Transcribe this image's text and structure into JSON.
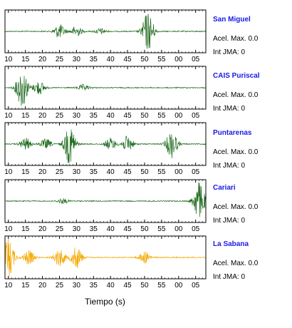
{
  "chart_data": {
    "type": "line",
    "title": "",
    "xlabel": "Tiempo (s)",
    "ylabel": "",
    "grid": false,
    "tick_labels": [
      "10",
      "15",
      "20",
      "25",
      "30",
      "35",
      "40",
      "45",
      "50",
      "55",
      "00",
      "05"
    ],
    "xlim": [
      9,
      68
    ],
    "panels": [
      {
        "station": "San Miguel",
        "pga_label": "Acel. Max. 0.0",
        "jma_label": "Int JMA: 0",
        "color": "#1f6b1f",
        "bursts": [
          {
            "t": 25,
            "amp": 0.35
          },
          {
            "t": 30,
            "amp": 0.25
          },
          {
            "t": 37,
            "amp": 0.15
          },
          {
            "t": 51,
            "amp": 1.0
          }
        ]
      },
      {
        "station": "CAIS Puriscal",
        "pga_label": "Acel. Max. 0.0",
        "jma_label": "Int JMA: 0",
        "color": "#1f6b1f",
        "bursts": [
          {
            "t": 14,
            "amp": 1.0
          },
          {
            "t": 19,
            "amp": 0.35
          },
          {
            "t": 32,
            "amp": 0.15
          }
        ]
      },
      {
        "station": "Puntarenas",
        "pga_label": "Acel. Max. 0.0",
        "jma_label": "Int JMA: 0",
        "color": "#1f6b1f",
        "bursts": [
          {
            "t": 15,
            "amp": 0.3
          },
          {
            "t": 21,
            "amp": 0.25
          },
          {
            "t": 28,
            "amp": 1.0
          },
          {
            "t": 40,
            "amp": 0.3
          },
          {
            "t": 45,
            "amp": 0.4
          },
          {
            "t": 58,
            "amp": 0.7
          }
        ]
      },
      {
        "station": "Cariari",
        "pga_label": "Acel. Max. 0.0",
        "jma_label": "Int JMA: 0",
        "color": "#1f6b1f",
        "bursts": [
          {
            "t": 26,
            "amp": 0.12
          },
          {
            "t": 66,
            "amp": 1.0
          }
        ]
      },
      {
        "station": "La Sabana",
        "pga_label": "Acel. Max. 0.0",
        "jma_label": "Int JMA: 0",
        "color": "#f5a800",
        "bursts": [
          {
            "t": 10,
            "amp": 1.0
          },
          {
            "t": 16,
            "amp": 0.35
          },
          {
            "t": 25,
            "amp": 0.45
          },
          {
            "t": 30,
            "amp": 0.55
          },
          {
            "t": 50,
            "amp": 0.3
          }
        ]
      }
    ]
  }
}
